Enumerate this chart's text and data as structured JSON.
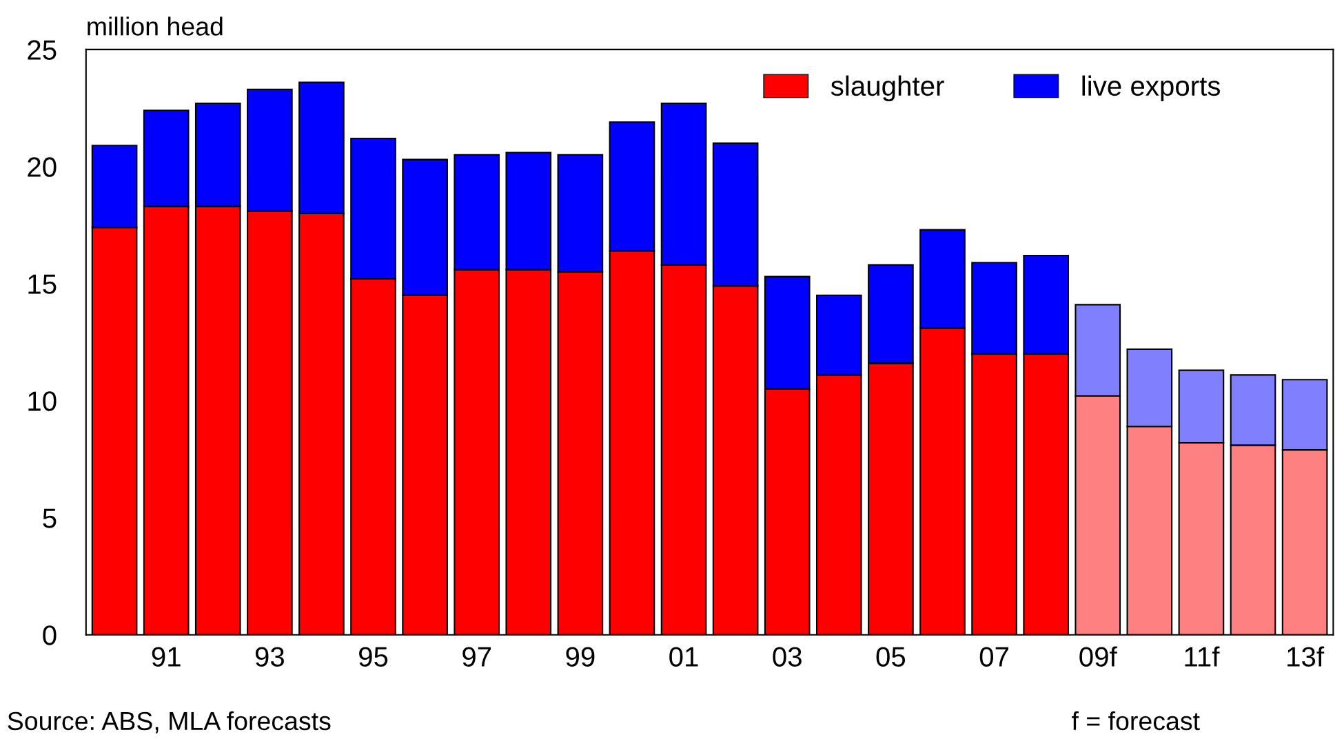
{
  "chart_data": {
    "type": "bar",
    "stacked": true,
    "ylabel": "million head",
    "categories": [
      null,
      "91",
      null,
      "93",
      null,
      "95",
      null,
      "97",
      null,
      "99",
      null,
      "01",
      null,
      "03",
      null,
      "05",
      null,
      "07",
      null,
      "09f",
      null,
      "11f",
      null,
      "13f"
    ],
    "series": [
      {
        "name": "slaughter",
        "color": "#ff0000",
        "colors": [
          "#ff0000",
          "#ff0000",
          "#ff0000",
          "#ff0000",
          "#ff0000",
          "#ff0000",
          "#ff0000",
          "#ff0000",
          "#ff0000",
          "#ff0000",
          "#ff0000",
          "#ff0000",
          "#ff0000",
          "#ff0000",
          "#ff0000",
          "#ff0000",
          "#ff0000",
          "#ff0000",
          "#ff0000",
          "#ff8080",
          "#ff8080",
          "#ff8080",
          "#ff8080",
          "#ff8080"
        ],
        "values": [
          17.4,
          18.3,
          18.3,
          18.1,
          18.0,
          15.2,
          14.5,
          15.6,
          15.6,
          15.5,
          16.4,
          15.8,
          14.9,
          10.5,
          11.1,
          11.6,
          13.1,
          12.0,
          12.0,
          10.2,
          8.9,
          8.2,
          8.1,
          7.9
        ]
      },
      {
        "name": "live exports",
        "color": "#0000ff",
        "colors": [
          "#0000ff",
          "#0000ff",
          "#0000ff",
          "#0000ff",
          "#0000ff",
          "#0000ff",
          "#0000ff",
          "#0000ff",
          "#0000ff",
          "#0000ff",
          "#0000ff",
          "#0000ff",
          "#0000ff",
          "#0000ff",
          "#0000ff",
          "#0000ff",
          "#0000ff",
          "#0000ff",
          "#0000ff",
          "#8080ff",
          "#8080ff",
          "#8080ff",
          "#8080ff",
          "#8080ff"
        ],
        "values": [
          3.5,
          4.1,
          4.4,
          5.2,
          5.6,
          6.0,
          5.8,
          4.9,
          5.0,
          5.0,
          5.5,
          6.9,
          6.1,
          4.8,
          3.4,
          4.2,
          4.2,
          3.9,
          4.2,
          3.9,
          3.3,
          3.1,
          3.0,
          3.0
        ]
      }
    ],
    "ylim": [
      0,
      25
    ],
    "yticks": [
      0,
      5,
      10,
      15,
      20,
      25
    ],
    "grid": false,
    "legend": "top right",
    "annotations": [
      "f = forecast",
      "Source: ABS, MLA forecasts"
    ]
  }
}
